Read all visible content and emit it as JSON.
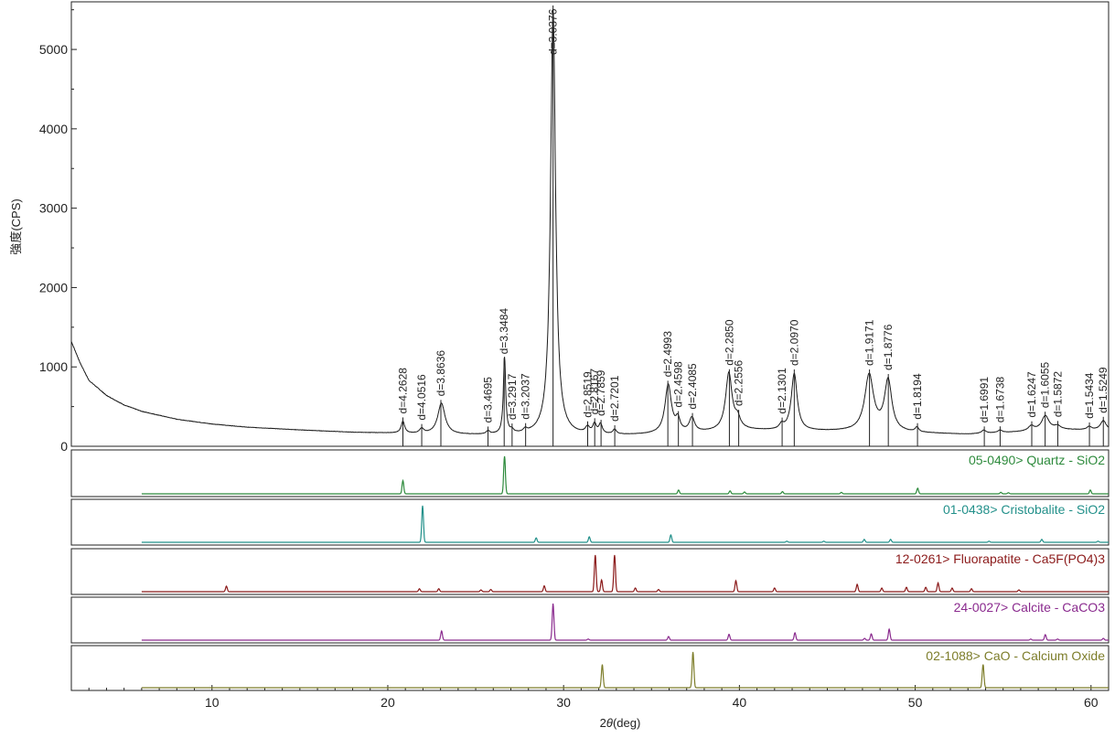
{
  "chart_data": {
    "type": "line",
    "ylabel": "強度(CPS)",
    "xlabel_prefix": "2",
    "xlabel_theta": "θ",
    "xlabel_suffix": "(deg)",
    "xlim": [
      2,
      61
    ],
    "ylim": [
      0,
      5600
    ],
    "x_ticks": [
      10,
      20,
      30,
      40,
      50,
      60
    ],
    "y_ticks": [
      0,
      1000,
      2000,
      3000,
      4000,
      5000
    ],
    "grid": false,
    "main_series": {
      "color": "#1a1a1a",
      "baseline": [
        [
          2,
          1320
        ],
        [
          2.5,
          1050
        ],
        [
          3,
          830
        ],
        [
          4,
          640
        ],
        [
          5,
          520
        ],
        [
          6,
          440
        ],
        [
          8,
          340
        ],
        [
          10,
          280
        ],
        [
          12,
          240
        ],
        [
          15,
          205
        ],
        [
          18,
          175
        ],
        [
          20,
          165
        ],
        [
          22,
          150
        ],
        [
          25,
          140
        ],
        [
          28,
          135
        ],
        [
          31,
          130
        ],
        [
          34,
          140
        ],
        [
          37,
          160
        ],
        [
          40,
          200
        ],
        [
          43,
          190
        ],
        [
          46,
          185
        ],
        [
          50,
          165
        ],
        [
          53,
          150
        ],
        [
          56,
          180
        ],
        [
          58,
          210
        ],
        [
          61,
          200
        ]
      ],
      "peaks": [
        {
          "pos": 20.86,
          "h": 150,
          "w": 0.12
        },
        {
          "pos": 21.93,
          "h": 60,
          "w": 0.15
        },
        {
          "pos": 23.05,
          "h": 390,
          "w": 0.25
        },
        {
          "pos": 25.7,
          "h": 40,
          "w": 0.12
        },
        {
          "pos": 26.64,
          "h": 960,
          "w": 0.08
        },
        {
          "pos": 27.06,
          "h": 40,
          "w": 0.12
        },
        {
          "pos": 27.82,
          "h": 40,
          "w": 0.12
        },
        {
          "pos": 29.4,
          "h": 5380,
          "w": 0.17
        },
        {
          "pos": 31.36,
          "h": 80,
          "w": 0.15
        },
        {
          "pos": 31.76,
          "h": 120,
          "w": 0.12
        },
        {
          "pos": 32.1,
          "h": 120,
          "w": 0.12
        },
        {
          "pos": 32.9,
          "h": 60,
          "w": 0.12
        },
        {
          "pos": 35.95,
          "h": 610,
          "w": 0.22
        },
        {
          "pos": 36.5,
          "h": 150,
          "w": 0.15
        },
        {
          "pos": 37.3,
          "h": 180,
          "w": 0.18
        },
        {
          "pos": 39.4,
          "h": 720,
          "w": 0.22
        },
        {
          "pos": 39.9,
          "h": 120,
          "w": 0.18
        },
        {
          "pos": 42.4,
          "h": 60,
          "w": 0.15
        },
        {
          "pos": 43.12,
          "h": 720,
          "w": 0.2
        },
        {
          "pos": 47.38,
          "h": 710,
          "w": 0.3
        },
        {
          "pos": 48.46,
          "h": 640,
          "w": 0.25
        },
        {
          "pos": 50.1,
          "h": 60,
          "w": 0.12
        },
        {
          "pos": 53.9,
          "h": 40,
          "w": 0.15
        },
        {
          "pos": 54.83,
          "h": 30,
          "w": 0.15
        },
        {
          "pos": 56.6,
          "h": 60,
          "w": 0.2
        },
        {
          "pos": 57.4,
          "h": 180,
          "w": 0.25
        },
        {
          "pos": 58.1,
          "h": 40,
          "w": 0.2
        },
        {
          "pos": 59.9,
          "h": 40,
          "w": 0.15
        },
        {
          "pos": 60.7,
          "h": 120,
          "w": 0.2
        }
      ]
    },
    "d_labels": [
      {
        "x": 20.86,
        "text": "d=4.2628"
      },
      {
        "x": 21.93,
        "text": "d=4.0516"
      },
      {
        "x": 23.02,
        "text": "d=3.8636"
      },
      {
        "x": 25.7,
        "text": "d=3.4695"
      },
      {
        "x": 26.62,
        "text": "d=3.3484"
      },
      {
        "x": 27.07,
        "text": "d=3.2917"
      },
      {
        "x": 27.84,
        "text": "d=3.2037"
      },
      {
        "x": 29.4,
        "text": "d=3.0376"
      },
      {
        "x": 31.37,
        "text": "d=2.8519"
      },
      {
        "x": 31.77,
        "text": "d=2.8167"
      },
      {
        "x": 32.13,
        "text": "d=2.7859"
      },
      {
        "x": 32.91,
        "text": "d=2.7201"
      },
      {
        "x": 35.93,
        "text": "d=2.4993"
      },
      {
        "x": 36.53,
        "text": "d=2.4598"
      },
      {
        "x": 37.33,
        "text": "d=2.4085"
      },
      {
        "x": 39.43,
        "text": "d=2.2850"
      },
      {
        "x": 39.96,
        "text": "d=2.2556"
      },
      {
        "x": 42.43,
        "text": "d=2.1301"
      },
      {
        "x": 43.12,
        "text": "d=2.0970"
      },
      {
        "x": 47.4,
        "text": "d=1.9171"
      },
      {
        "x": 48.47,
        "text": "d=1.8776"
      },
      {
        "x": 50.13,
        "text": "d=1.8194"
      },
      {
        "x": 53.93,
        "text": "d=1.6991"
      },
      {
        "x": 54.83,
        "text": "d=1.6738"
      },
      {
        "x": 56.63,
        "text": "d=1.6247"
      },
      {
        "x": 57.39,
        "text": "d=1.6055"
      },
      {
        "x": 58.11,
        "text": "d=1.5872"
      },
      {
        "x": 59.91,
        "text": "d=1.5434"
      },
      {
        "x": 60.7,
        "text": "d=1.5249"
      }
    ],
    "reference_patterns": [
      {
        "name": "05-0490> Quartz - SiO2",
        "color": "#2e8b3d",
        "x_start": 6,
        "peaks": [
          [
            20.86,
            0.35
          ],
          [
            26.64,
            1.0
          ],
          [
            36.54,
            0.1
          ],
          [
            39.47,
            0.08
          ],
          [
            40.29,
            0.05
          ],
          [
            42.45,
            0.06
          ],
          [
            45.8,
            0.04
          ],
          [
            50.14,
            0.15
          ],
          [
            54.87,
            0.04
          ],
          [
            55.3,
            0.03
          ],
          [
            59.96,
            0.1
          ]
        ]
      },
      {
        "name": "01-0438> Cristobalite - SiO2",
        "color": "#22908a",
        "x_start": 6,
        "peaks": [
          [
            21.98,
            1.0
          ],
          [
            28.44,
            0.12
          ],
          [
            31.46,
            0.15
          ],
          [
            36.1,
            0.2
          ],
          [
            42.7,
            0.03
          ],
          [
            44.8,
            0.03
          ],
          [
            47.1,
            0.08
          ],
          [
            48.6,
            0.08
          ],
          [
            54.2,
            0.03
          ],
          [
            57.2,
            0.08
          ],
          [
            60.4,
            0.03
          ]
        ]
      },
      {
        "name": "12-0261> Fluorapatite - Ca5F(PO4)3",
        "color": "#8b1a1a",
        "x_start": 6,
        "peaks": [
          [
            10.82,
            0.15
          ],
          [
            21.8,
            0.08
          ],
          [
            22.9,
            0.08
          ],
          [
            25.3,
            0.05
          ],
          [
            25.86,
            0.06
          ],
          [
            28.9,
            0.16
          ],
          [
            31.8,
            1.0
          ],
          [
            32.16,
            0.32
          ],
          [
            32.9,
            1.0
          ],
          [
            34.08,
            0.1
          ],
          [
            35.4,
            0.06
          ],
          [
            39.8,
            0.3
          ],
          [
            42.0,
            0.1
          ],
          [
            46.7,
            0.2
          ],
          [
            48.1,
            0.1
          ],
          [
            49.5,
            0.12
          ],
          [
            50.6,
            0.12
          ],
          [
            51.3,
            0.24
          ],
          [
            52.1,
            0.1
          ],
          [
            53.2,
            0.08
          ],
          [
            55.9,
            0.05
          ]
        ]
      },
      {
        "name": "24-0027> Calcite - CaCO3",
        "color": "#8a2a8e",
        "x_start": 6,
        "peaks": [
          [
            23.06,
            0.25
          ],
          [
            29.4,
            1.0
          ],
          [
            31.4,
            0.03
          ],
          [
            35.97,
            0.1
          ],
          [
            39.41,
            0.16
          ],
          [
            43.16,
            0.2
          ],
          [
            47.12,
            0.05
          ],
          [
            47.5,
            0.17
          ],
          [
            48.52,
            0.3
          ],
          [
            56.57,
            0.03
          ],
          [
            57.4,
            0.15
          ],
          [
            58.1,
            0.03
          ],
          [
            60.7,
            0.05
          ]
        ]
      },
      {
        "name": "02-1088> CaO - Calcium Oxide",
        "color": "#7d7d2a",
        "x_start": 6,
        "peaks": [
          [
            32.2,
            0.65
          ],
          [
            37.36,
            1.0
          ],
          [
            53.86,
            0.65
          ]
        ]
      }
    ]
  }
}
